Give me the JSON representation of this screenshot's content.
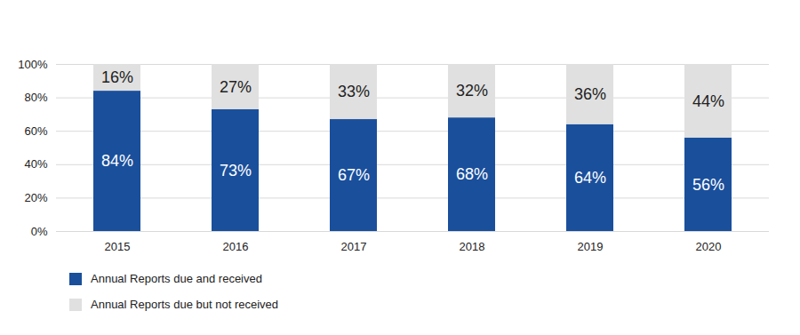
{
  "chart_data": {
    "type": "bar",
    "stacked": true,
    "data_labels": true,
    "grid": true,
    "legend": "bottom-left",
    "categories": [
      "2015",
      "2016",
      "2017",
      "2018",
      "2019",
      "2020"
    ],
    "series": [
      {
        "name": "Annual Reports due and received",
        "color": "#1a4f9c",
        "values": [
          84,
          73,
          67,
          68,
          64,
          56
        ],
        "value_labels": [
          "84%",
          "73%",
          "67%",
          "68%",
          "64%",
          "56%"
        ]
      },
      {
        "name": "Annual Reports due but not received",
        "color": "#e0e0e0",
        "values": [
          16,
          27,
          33,
          32,
          36,
          44
        ],
        "value_labels": [
          "16%",
          "27%",
          "33%",
          "32%",
          "36%",
          "44%"
        ]
      }
    ],
    "ylim": [
      0,
      100
    ],
    "yticks": [
      {
        "value": 0,
        "label": "0%"
      },
      {
        "value": 20,
        "label": "20%"
      },
      {
        "value": 40,
        "label": "40%"
      },
      {
        "value": 60,
        "label": "60%"
      },
      {
        "value": 80,
        "label": "80%"
      },
      {
        "value": 100,
        "label": "100%"
      }
    ]
  }
}
